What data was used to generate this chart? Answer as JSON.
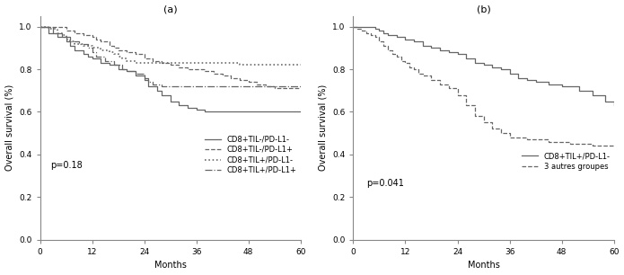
{
  "panel_a_title": "(a)",
  "panel_b_title": "(b)",
  "xlabel": "Months",
  "ylabel": "Overall survival (%)",
  "xlim": [
    0,
    60
  ],
  "ylim": [
    0.0,
    1.05
  ],
  "yticks": [
    0.0,
    0.2,
    0.4,
    0.6,
    0.8,
    1.0
  ],
  "xticks": [
    0,
    12,
    24,
    36,
    48,
    60
  ],
  "pvalue_a": "p=0.18",
  "pvalue_b": "p=0.041",
  "a_curve1_label": "CD8+TIL-/PD-L1-",
  "a_curve1_x": [
    0,
    2,
    4,
    6,
    7,
    8,
    10,
    11,
    12,
    14,
    16,
    18,
    20,
    22,
    24,
    25,
    27,
    28,
    30,
    32,
    34,
    36,
    38,
    40,
    42,
    45,
    48,
    50,
    54,
    58,
    60
  ],
  "a_curve1_y": [
    1.0,
    0.97,
    0.95,
    0.93,
    0.91,
    0.89,
    0.87,
    0.86,
    0.85,
    0.83,
    0.82,
    0.8,
    0.79,
    0.77,
    0.75,
    0.72,
    0.7,
    0.68,
    0.65,
    0.63,
    0.62,
    0.61,
    0.6,
    0.6,
    0.6,
    0.6,
    0.6,
    0.6,
    0.6,
    0.6,
    0.6
  ],
  "a_curve2_label": "CD8+TIL-/PD-L1+",
  "a_curve2_x": [
    0,
    4,
    6,
    8,
    10,
    12,
    13,
    14,
    16,
    17,
    18,
    20,
    22,
    24,
    26,
    28,
    30,
    32,
    34,
    36,
    38,
    40,
    42,
    44,
    46,
    48,
    50,
    52,
    54,
    56,
    58,
    60
  ],
  "a_curve2_y": [
    1.0,
    1.0,
    0.98,
    0.97,
    0.96,
    0.95,
    0.94,
    0.93,
    0.91,
    0.9,
    0.89,
    0.88,
    0.87,
    0.85,
    0.84,
    0.83,
    0.82,
    0.81,
    0.8,
    0.8,
    0.79,
    0.78,
    0.77,
    0.76,
    0.75,
    0.74,
    0.73,
    0.72,
    0.71,
    0.71,
    0.71,
    0.71
  ],
  "a_curve3_label": "CD8+TIL+/PD-L1-",
  "a_curve3_x": [
    0,
    2,
    4,
    5,
    6,
    7,
    8,
    10,
    12,
    14,
    16,
    17,
    18,
    19,
    20,
    22,
    24,
    26,
    28,
    30,
    32,
    34,
    36,
    38,
    40,
    42,
    44,
    46,
    48,
    50,
    55,
    60
  ],
  "a_curve3_y": [
    1.0,
    0.99,
    0.97,
    0.96,
    0.94,
    0.93,
    0.92,
    0.91,
    0.9,
    0.89,
    0.88,
    0.87,
    0.86,
    0.85,
    0.84,
    0.83,
    0.83,
    0.83,
    0.83,
    0.83,
    0.83,
    0.83,
    0.83,
    0.83,
    0.83,
    0.83,
    0.83,
    0.82,
    0.82,
    0.82,
    0.82,
    0.82
  ],
  "a_curve4_label": "CD8+TIL+/PD-L1+",
  "a_curve4_x": [
    0,
    3,
    5,
    7,
    9,
    11,
    12,
    13,
    15,
    17,
    19,
    20,
    22,
    24,
    25,
    26,
    28,
    30,
    32,
    35,
    38,
    40,
    42,
    45,
    48,
    50,
    55,
    60
  ],
  "a_curve4_y": [
    1.0,
    0.97,
    0.95,
    0.93,
    0.92,
    0.9,
    0.88,
    0.86,
    0.84,
    0.82,
    0.8,
    0.79,
    0.78,
    0.76,
    0.74,
    0.73,
    0.72,
    0.72,
    0.72,
    0.72,
    0.72,
    0.72,
    0.72,
    0.72,
    0.72,
    0.72,
    0.72,
    0.72
  ],
  "b_curve1_label": "CD8+TIL+/PD-L1-",
  "b_curve1_x": [
    0,
    3,
    5,
    6,
    7,
    8,
    10,
    12,
    14,
    16,
    18,
    20,
    22,
    24,
    26,
    28,
    30,
    32,
    34,
    36,
    38,
    40,
    42,
    45,
    48,
    52,
    55,
    58,
    60
  ],
  "b_curve1_y": [
    1.0,
    1.0,
    0.99,
    0.98,
    0.97,
    0.96,
    0.95,
    0.94,
    0.93,
    0.91,
    0.9,
    0.89,
    0.88,
    0.87,
    0.85,
    0.83,
    0.82,
    0.81,
    0.8,
    0.78,
    0.76,
    0.75,
    0.74,
    0.73,
    0.72,
    0.7,
    0.68,
    0.65,
    0.63
  ],
  "b_curve2_label": "3 autres groupes",
  "b_curve2_x": [
    0,
    1,
    2,
    3,
    4,
    5,
    6,
    7,
    8,
    9,
    10,
    11,
    12,
    13,
    14,
    15,
    16,
    18,
    20,
    22,
    24,
    26,
    28,
    30,
    32,
    34,
    36,
    40,
    45,
    50,
    55,
    60
  ],
  "b_curve2_y": [
    1.0,
    0.99,
    0.98,
    0.97,
    0.96,
    0.95,
    0.93,
    0.91,
    0.89,
    0.87,
    0.86,
    0.84,
    0.83,
    0.81,
    0.8,
    0.78,
    0.77,
    0.75,
    0.73,
    0.71,
    0.68,
    0.63,
    0.58,
    0.55,
    0.52,
    0.5,
    0.48,
    0.47,
    0.46,
    0.45,
    0.44,
    0.44
  ],
  "line_color": "#666666",
  "fontsize_label": 7,
  "fontsize_tick": 6.5,
  "fontsize_title": 8,
  "fontsize_legend": 6,
  "fontsize_pvalue": 7
}
